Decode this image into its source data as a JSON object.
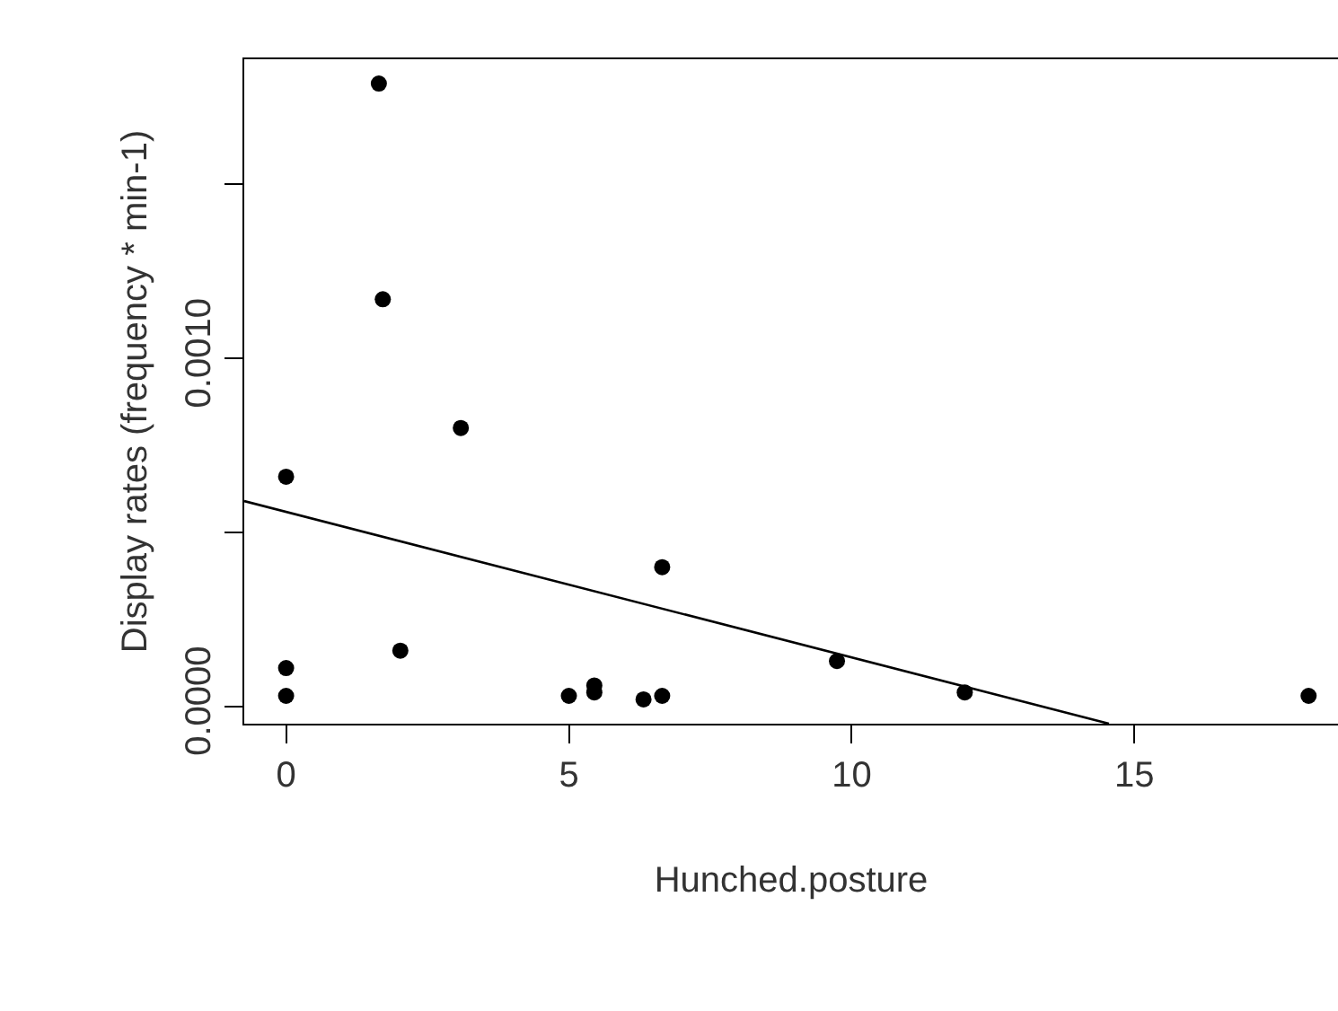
{
  "chart_data": {
    "type": "scatter",
    "xlabel": "Hunched.posture",
    "ylabel": "Display rates (frequency * min-1)",
    "xlim": [
      -0.74,
      18.6
    ],
    "ylim": [
      -5e-05,
      0.00186
    ],
    "xticks": [
      0,
      5,
      10,
      15
    ],
    "yticks": [
      {
        "value": 0,
        "label": "0.0000"
      },
      {
        "value": 0.0005,
        "label": null
      },
      {
        "value": 0.001,
        "label": "0.0010"
      },
      {
        "value": 0.0015,
        "label": null
      }
    ],
    "grid": false,
    "marker": "circle",
    "series": [
      {
        "color": "#000000",
        "x": [
          0,
          0,
          0,
          1.64,
          1.71,
          2.02,
          3.09,
          5.0,
          5.45,
          5.45,
          6.32,
          6.65,
          6.65,
          9.74,
          12.0,
          18.08
        ],
        "values": [
          0.00066,
          0.00011,
          3e-05,
          0.00179,
          0.00117,
          0.00016,
          0.0008,
          3e-05,
          6e-05,
          4e-05,
          2e-05,
          3e-05,
          0.0004,
          0.00013,
          4e-05,
          3e-05
        ]
      },
      {
        "type": "line",
        "color": "#000000",
        "marker": "none",
        "line_style": "solid",
        "x": [
          -0.74,
          14.55
        ],
        "values": [
          0.00059,
          -5e-05
        ]
      }
    ]
  }
}
